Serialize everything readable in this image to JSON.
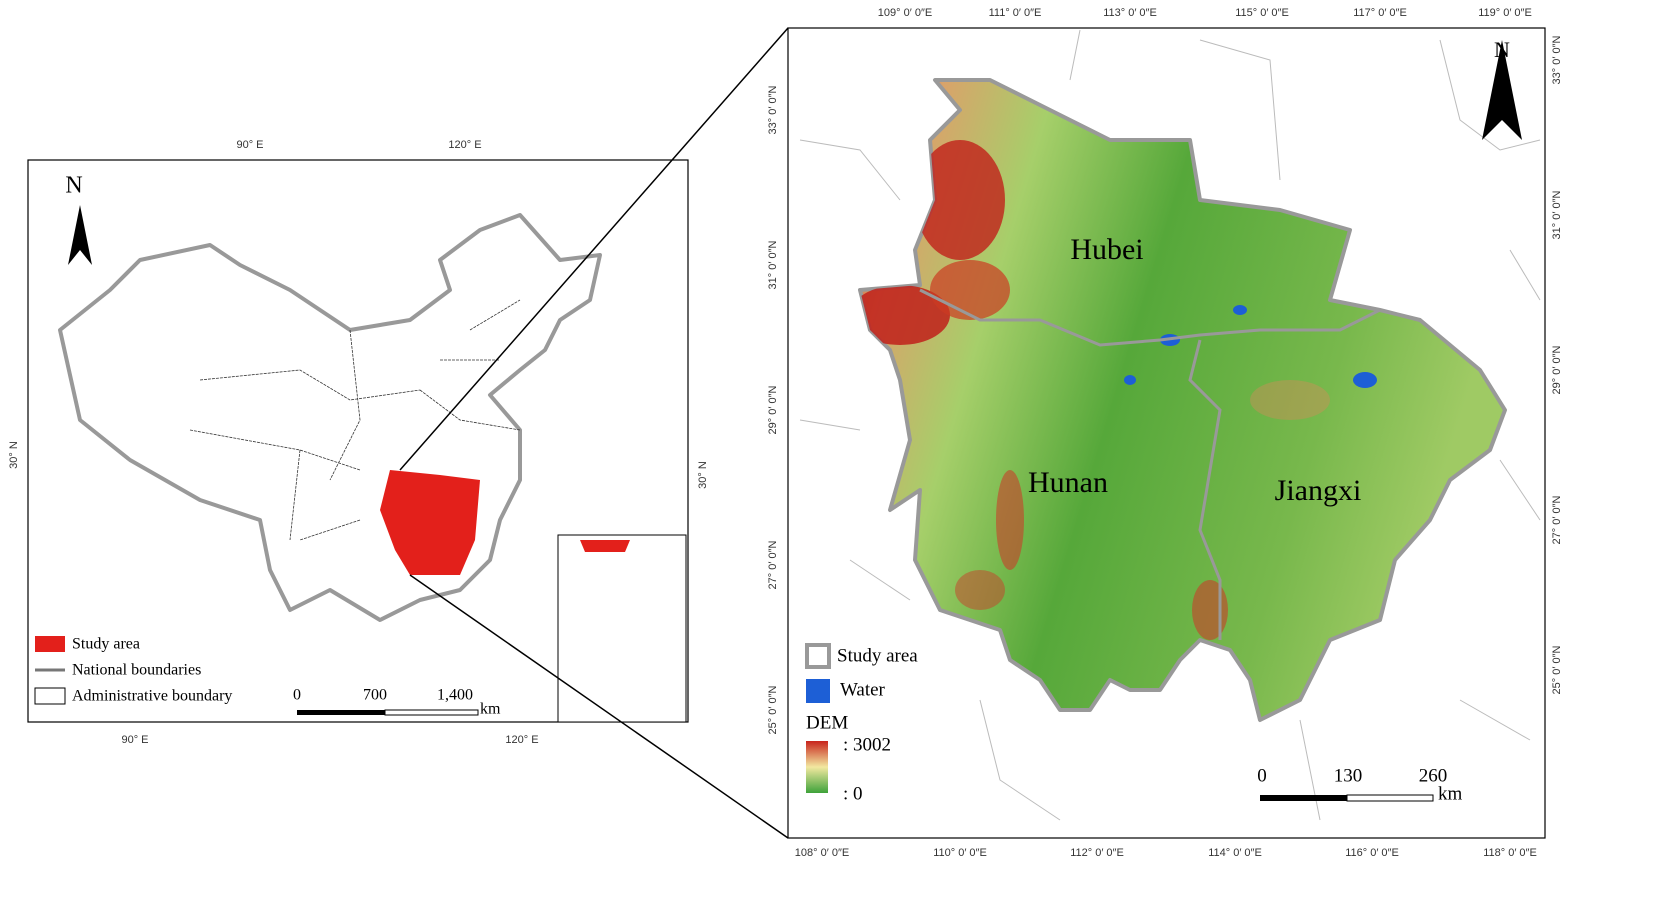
{
  "overview_map": {
    "top_longitudes": [
      "90° E",
      "120° E"
    ],
    "bottom_longitudes": [
      "90° E",
      "120° E"
    ],
    "left_latitude": "30° N",
    "right_latitude": "30° N",
    "north": "N",
    "legend": [
      "Study area",
      "National boundaries",
      "Administrative boundary"
    ],
    "scale": {
      "ticks": [
        "0",
        "700",
        "1,400"
      ],
      "unit": "km"
    }
  },
  "study_map": {
    "top_longitudes": [
      "109° 0′ 0″E",
      "111° 0′ 0″E",
      "113° 0′ 0″E",
      "115° 0′ 0″E",
      "117° 0′ 0″E",
      "119° 0′ 0″E"
    ],
    "bottom_longitudes": [
      "108° 0′ 0″E",
      "110° 0′ 0″E",
      "112° 0′ 0″E",
      "114° 0′ 0″E",
      "116° 0′ 0″E",
      "118° 0′ 0″E"
    ],
    "left_latitudes": [
      "33° 0′ 0″N",
      "31° 0′ 0″N",
      "29° 0′ 0″N",
      "27° 0′ 0″N",
      "25° 0′ 0″N"
    ],
    "right_latitudes": [
      "33° 0′ 0″N",
      "31° 0′ 0″N",
      "29° 0′ 0″N",
      "27° 0′ 0″N",
      "25° 0′ 0″N"
    ],
    "north": "N",
    "provinces": [
      "Hubei",
      "Hunan",
      "Jiangxi"
    ],
    "legend": {
      "study_area": "Study area",
      "water": "Water",
      "dem_title": "DEM",
      "dem_high": ": 3002",
      "dem_low": ": 0"
    },
    "scale": {
      "ticks": [
        "0",
        "130",
        "260"
      ],
      "unit": "km"
    }
  }
}
